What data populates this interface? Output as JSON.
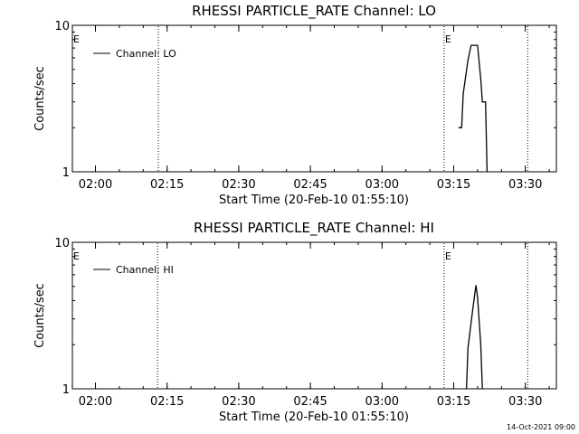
{
  "stamp": "14-Oct-2021 09:00",
  "chart_data": [
    {
      "type": "line",
      "title": "RHESSI PARTICLE_RATE Channel: LO",
      "xlabel": "Start Time (20-Feb-10 01:55:10)",
      "ylabel": "Counts/sec",
      "y_scale": "log",
      "ylim": [
        1,
        10
      ],
      "y_ticks": [
        {
          "value": 1,
          "label": "1"
        },
        {
          "value": 10,
          "label": "10"
        }
      ],
      "xlim": [
        "01:55:10",
        "03:36:30"
      ],
      "x_ticks": [
        "02:00",
        "02:15",
        "02:30",
        "02:45",
        "03:00",
        "03:15",
        "03:30"
      ],
      "legend": "top-left",
      "series": [
        {
          "name": "Channel: LO",
          "x": [
            "03:16:00",
            "03:16:40",
            "03:17:00",
            "03:18:00",
            "03:18:40",
            "03:19:00",
            "03:20:00",
            "03:20:40",
            "03:21:00",
            "03:21:40",
            "03:22:00"
          ],
          "y": [
            2.0,
            2.0,
            3.4,
            5.8,
            7.3,
            7.3,
            7.3,
            4.3,
            3.0,
            3.0,
            0.95
          ]
        }
      ],
      "event_markers": [
        {
          "x": "02:13:10",
          "label": ""
        },
        {
          "x": "03:13:00",
          "label": "E"
        },
        {
          "x": "03:30:30",
          "label": ""
        }
      ],
      "edge_label": "E"
    },
    {
      "type": "line",
      "title": "RHESSI PARTICLE_RATE Channel: HI",
      "xlabel": "Start Time (20-Feb-10 01:55:10)",
      "ylabel": "Counts/sec",
      "y_scale": "log",
      "ylim": [
        1,
        10
      ],
      "y_ticks": [
        {
          "value": 1,
          "label": "1"
        },
        {
          "value": 10,
          "label": "10"
        }
      ],
      "xlim": [
        "01:55:10",
        "03:36:30"
      ],
      "x_ticks": [
        "02:00",
        "02:15",
        "02:30",
        "02:45",
        "03:00",
        "03:15",
        "03:30"
      ],
      "legend": "top-left",
      "series": [
        {
          "name": "Channel: HI",
          "x": [
            "03:17:40",
            "03:18:00",
            "03:19:00",
            "03:19:40",
            "03:20:00",
            "03:20:40",
            "03:21:00"
          ],
          "y": [
            0.95,
            1.9,
            3.5,
            5.1,
            4.2,
            2.0,
            0.95
          ]
        }
      ],
      "event_markers": [
        {
          "x": "02:13:00",
          "label": ""
        },
        {
          "x": "03:13:00",
          "label": "E"
        },
        {
          "x": "03:30:30",
          "label": ""
        }
      ],
      "edge_label": "E"
    }
  ]
}
